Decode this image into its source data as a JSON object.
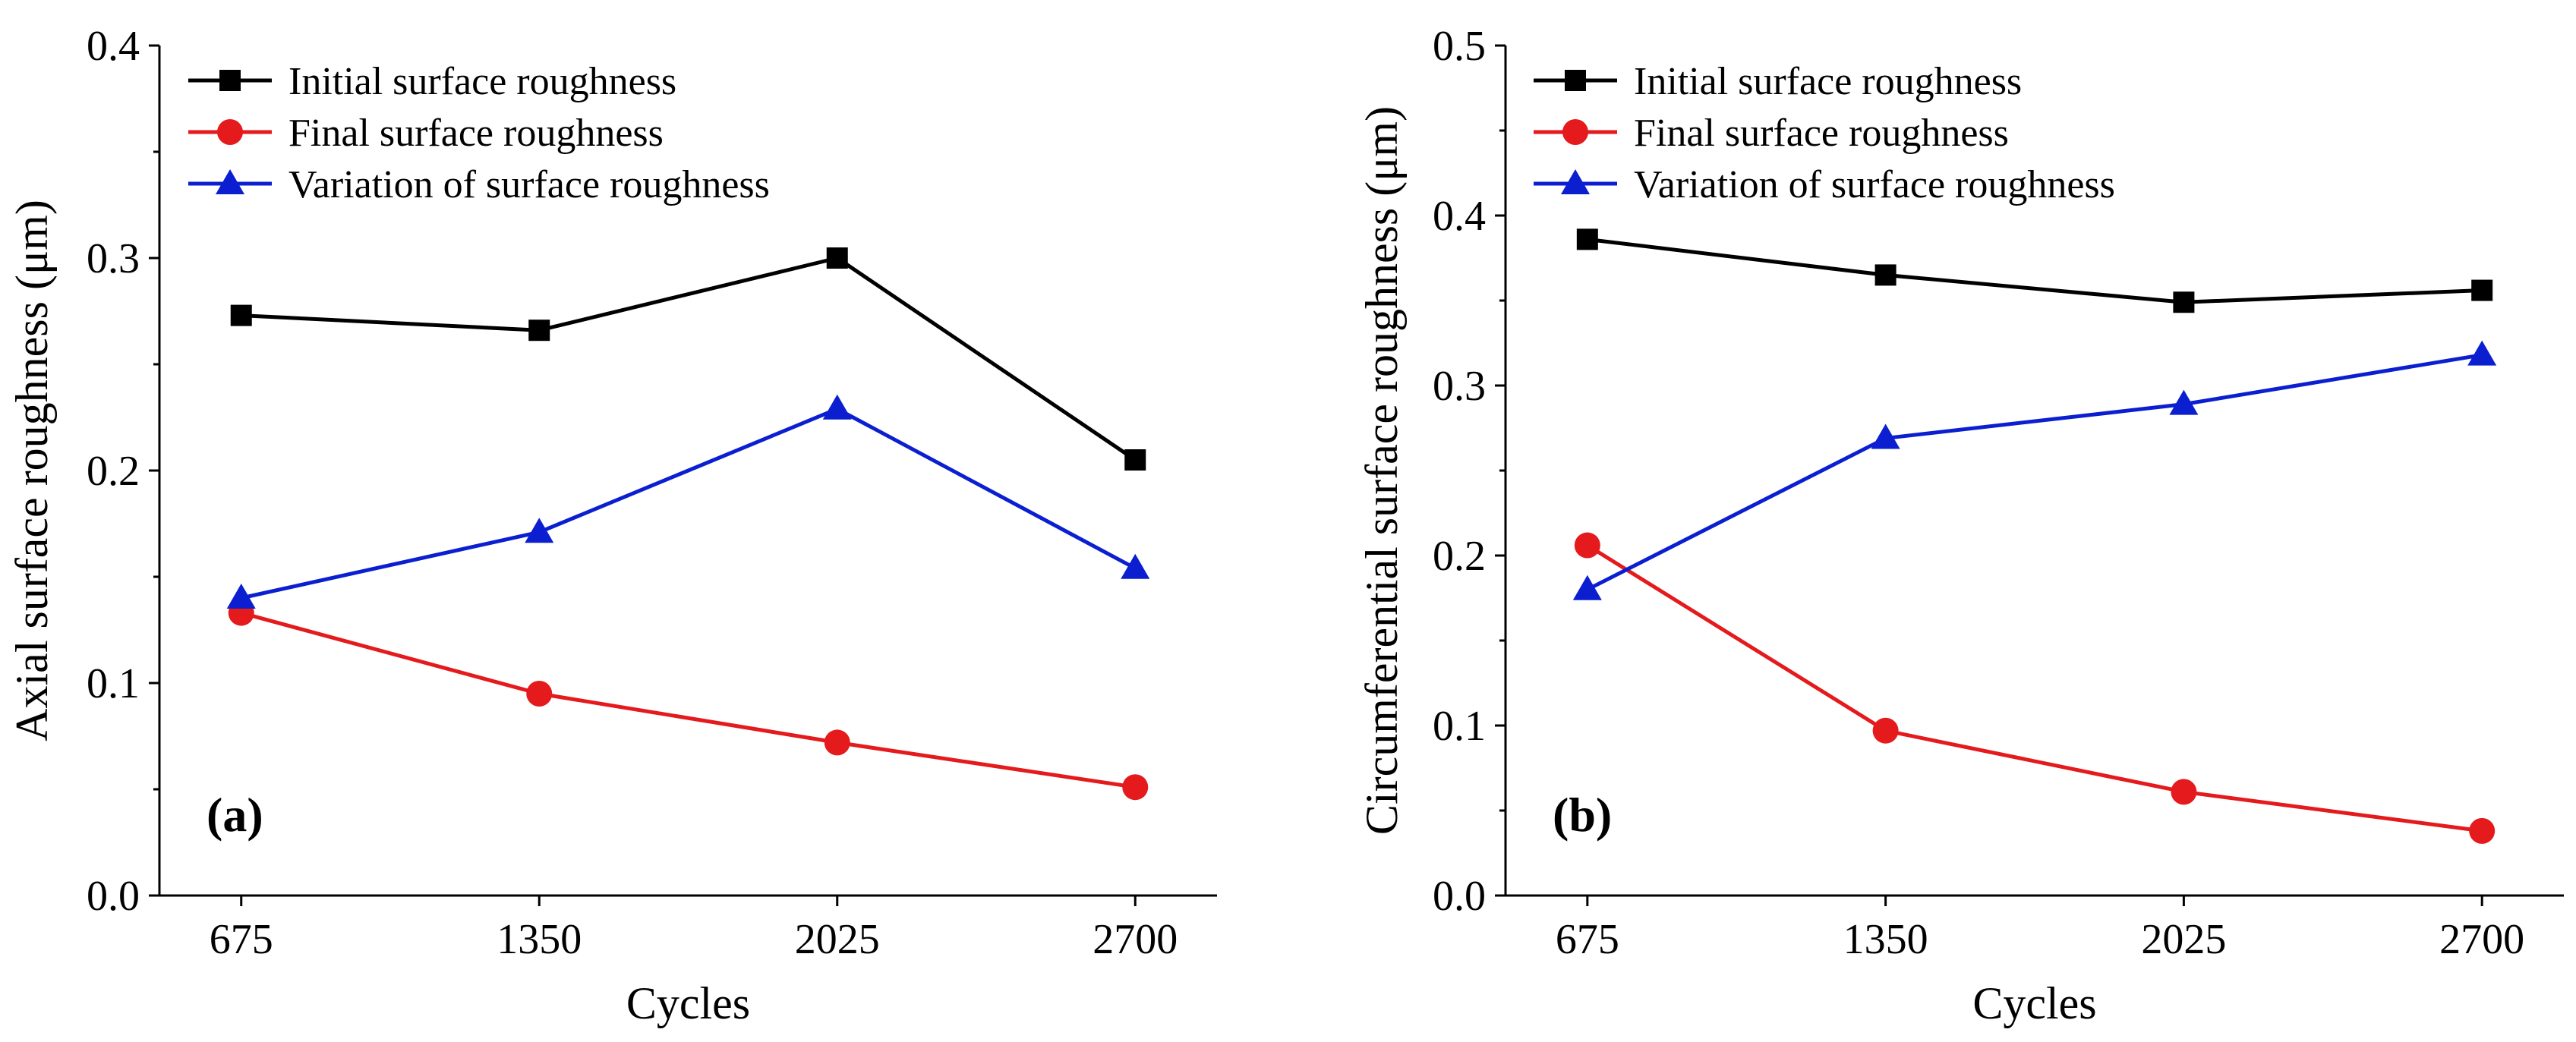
{
  "chart_data": [
    {
      "type": "line",
      "panel_label": "(a)",
      "x": [
        675,
        1350,
        2025,
        2700
      ],
      "x_tick_labels": [
        "675",
        "1350",
        "2025",
        "2700"
      ],
      "xlabel": "Cycles",
      "ylabel": "Axial surface roughness (μm)",
      "ylim": [
        0.0,
        0.4
      ],
      "y_tick_values": [
        0.0,
        0.1,
        0.2,
        0.3,
        0.4
      ],
      "y_tick_labels": [
        "0.0",
        "0.1",
        "0.2",
        "0.3",
        "0.4"
      ],
      "grid": false,
      "legend_position": "top-left",
      "series": [
        {
          "name": "Initial surface roughness",
          "values": [
            0.273,
            0.266,
            0.3,
            0.205
          ],
          "color": "#000000",
          "marker": "square"
        },
        {
          "name": "Final surface roughness",
          "values": [
            0.133,
            0.095,
            0.072,
            0.051
          ],
          "color": "#e41a1c",
          "marker": "circle"
        },
        {
          "name": "Variation of surface roughness",
          "values": [
            0.14,
            0.171,
            0.229,
            0.154
          ],
          "color": "#0b1fd1",
          "marker": "triangle"
        }
      ]
    },
    {
      "type": "line",
      "panel_label": "(b)",
      "x": [
        675,
        1350,
        2025,
        2700
      ],
      "x_tick_labels": [
        "675",
        "1350",
        "2025",
        "2700"
      ],
      "xlabel": "Cycles",
      "ylabel": "Circumferential surface roughness (μm)",
      "ylim": [
        0.0,
        0.5
      ],
      "y_tick_values": [
        0.0,
        0.1,
        0.2,
        0.3,
        0.4,
        0.5
      ],
      "y_tick_labels": [
        "0.0",
        "0.1",
        "0.2",
        "0.3",
        "0.4",
        "0.5"
      ],
      "grid": false,
      "legend_position": "top-left",
      "series": [
        {
          "name": "Initial surface roughness",
          "values": [
            0.386,
            0.365,
            0.349,
            0.356
          ],
          "color": "#000000",
          "marker": "square"
        },
        {
          "name": "Final surface roughness",
          "values": [
            0.206,
            0.097,
            0.061,
            0.038
          ],
          "color": "#e41a1c",
          "marker": "circle"
        },
        {
          "name": "Variation of surface roughness",
          "values": [
            0.18,
            0.269,
            0.289,
            0.318
          ],
          "color": "#0b1fd1",
          "marker": "triangle"
        }
      ]
    }
  ]
}
